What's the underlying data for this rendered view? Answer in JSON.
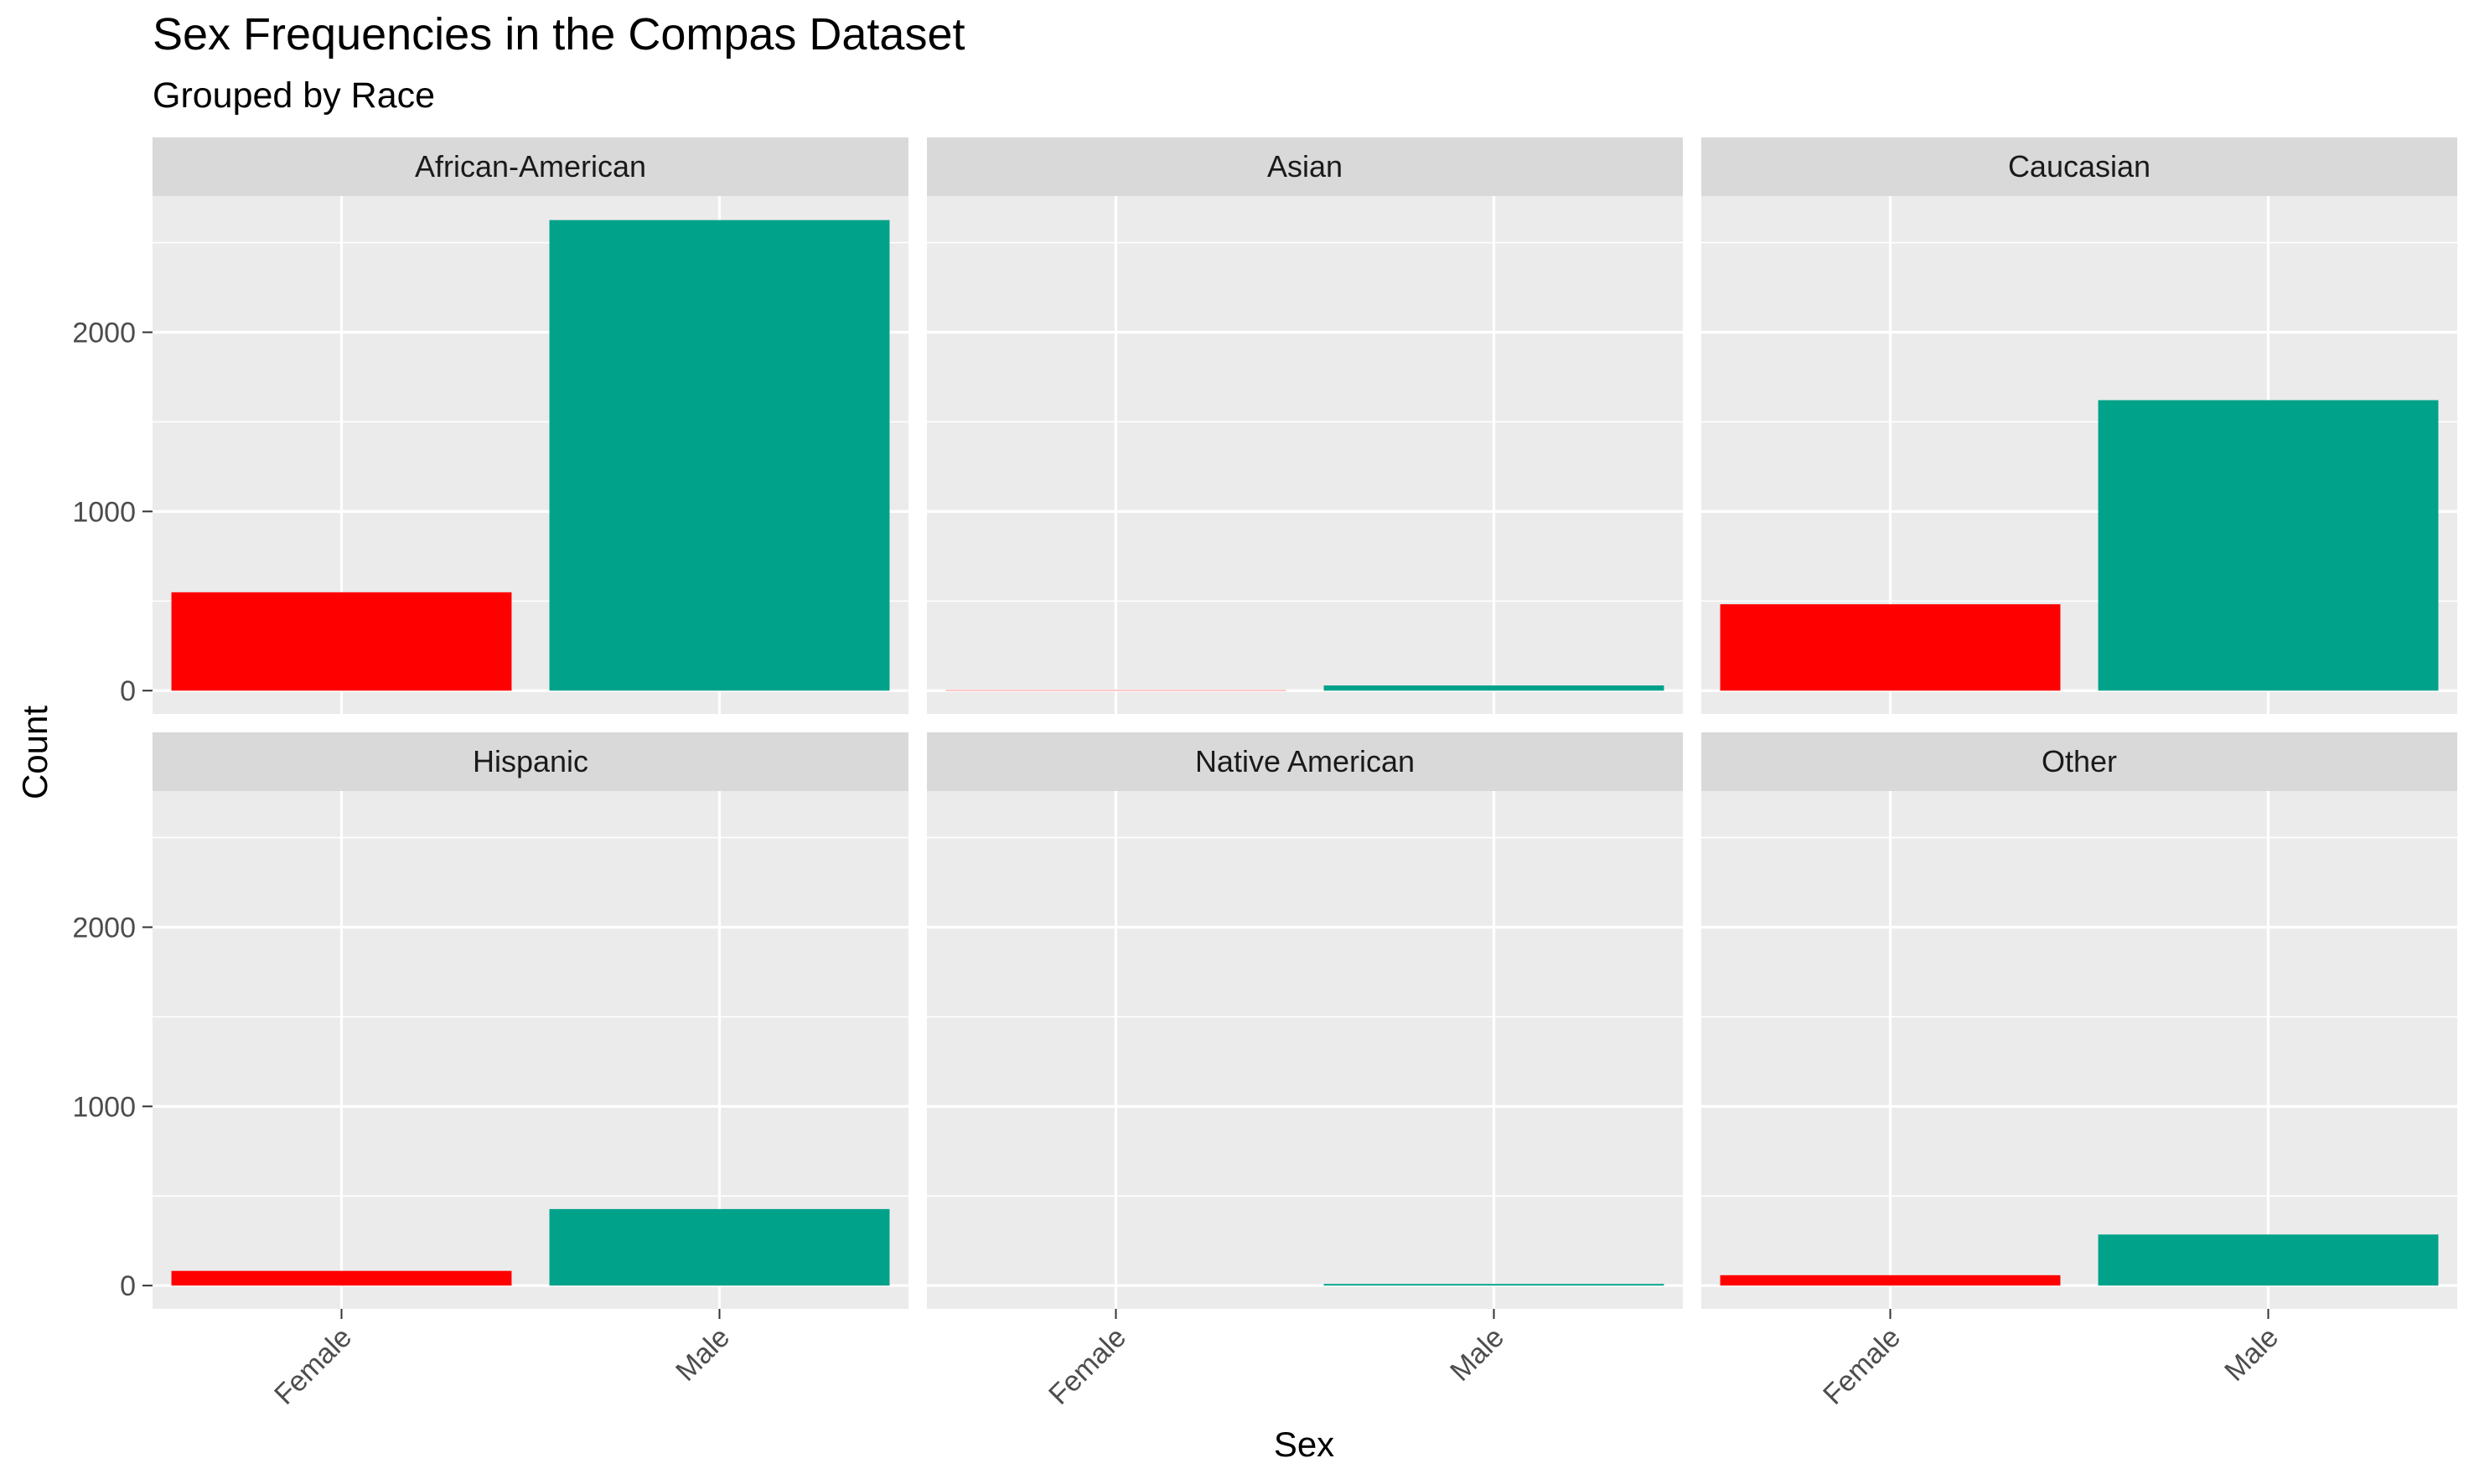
{
  "chart_data": {
    "type": "bar",
    "title": "Sex Frequencies in the Compas Dataset",
    "subtitle": "Grouped by Race",
    "xlabel": "Sex",
    "ylabel": "Count",
    "categories": [
      "Female",
      "Male"
    ],
    "y_ticks": [
      "0",
      "1000",
      "2000"
    ],
    "ylim": [
      -130,
      2760
    ],
    "colors": {
      "Female": "#ff0000",
      "Male": "#00a28a"
    },
    "panels": [
      {
        "name": "African-American",
        "values": [
          549,
          2626
        ]
      },
      {
        "name": "Asian",
        "values": [
          2,
          29
        ]
      },
      {
        "name": "Caucasian",
        "values": [
          482,
          1621
        ]
      },
      {
        "name": "Hispanic",
        "values": [
          82,
          427
        ]
      },
      {
        "name": "Native American",
        "values": [
          0,
          9
        ]
      },
      {
        "name": "Other",
        "values": [
          58,
          285
        ]
      }
    ]
  }
}
